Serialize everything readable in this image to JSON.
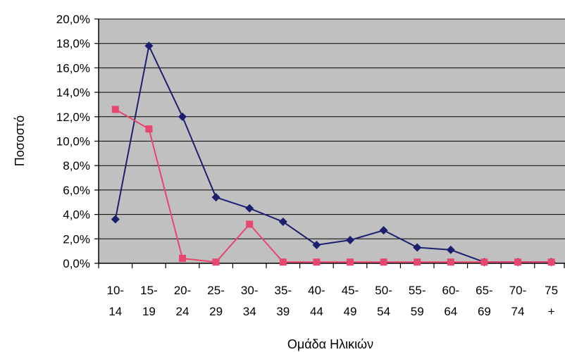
{
  "chart_data": {
    "type": "line",
    "title": "",
    "xlabel": "Ομάδα Ηλικιών",
    "ylabel": "Ποσοστό",
    "ylim": [
      0,
      20
    ],
    "y_tick_values": [
      0,
      2,
      4,
      6,
      8,
      10,
      12,
      14,
      16,
      18,
      20
    ],
    "y_tick_labels": [
      "0,0%",
      "2,0%",
      "4,0%",
      "6,0%",
      "8,0%",
      "10,0%",
      "12,0%",
      "14,0%",
      "16,0%",
      "18,0%",
      "20,0%"
    ],
    "categories": [
      "10-14",
      "15-19",
      "20-24",
      "25-29",
      "30-34",
      "35-39",
      "40-44",
      "45-49",
      "50-54",
      "55-59",
      "60-64",
      "65-69",
      "70-74",
      "75+"
    ],
    "category_labels": [
      [
        "10-",
        "14"
      ],
      [
        "15-",
        "19"
      ],
      [
        "20-",
        "24"
      ],
      [
        "25-",
        "29"
      ],
      [
        "30-",
        "34"
      ],
      [
        "35-",
        "39"
      ],
      [
        "40-",
        "44"
      ],
      [
        "45-",
        "49"
      ],
      [
        "50-",
        "54"
      ],
      [
        "55-",
        "59"
      ],
      [
        "60-",
        "64"
      ],
      [
        "65-",
        "69"
      ],
      [
        "70-",
        "74"
      ],
      [
        "75",
        "+"
      ]
    ],
    "grid": true,
    "plot_background": "#c0c0c0",
    "series": [
      {
        "color": "#1c1f6e",
        "marker": "diamond",
        "values": [
          3.6,
          17.8,
          12.0,
          5.4,
          4.5,
          3.4,
          1.5,
          1.9,
          2.7,
          1.3,
          1.1,
          0.1,
          0.1,
          0.1
        ]
      },
      {
        "color": "#e8456f",
        "marker": "square",
        "values": [
          12.6,
          11.0,
          0.4,
          0.1,
          3.2,
          0.1,
          0.1,
          0.1,
          0.1,
          0.1,
          0.1,
          0.1,
          0.1,
          0.1
        ]
      }
    ]
  }
}
